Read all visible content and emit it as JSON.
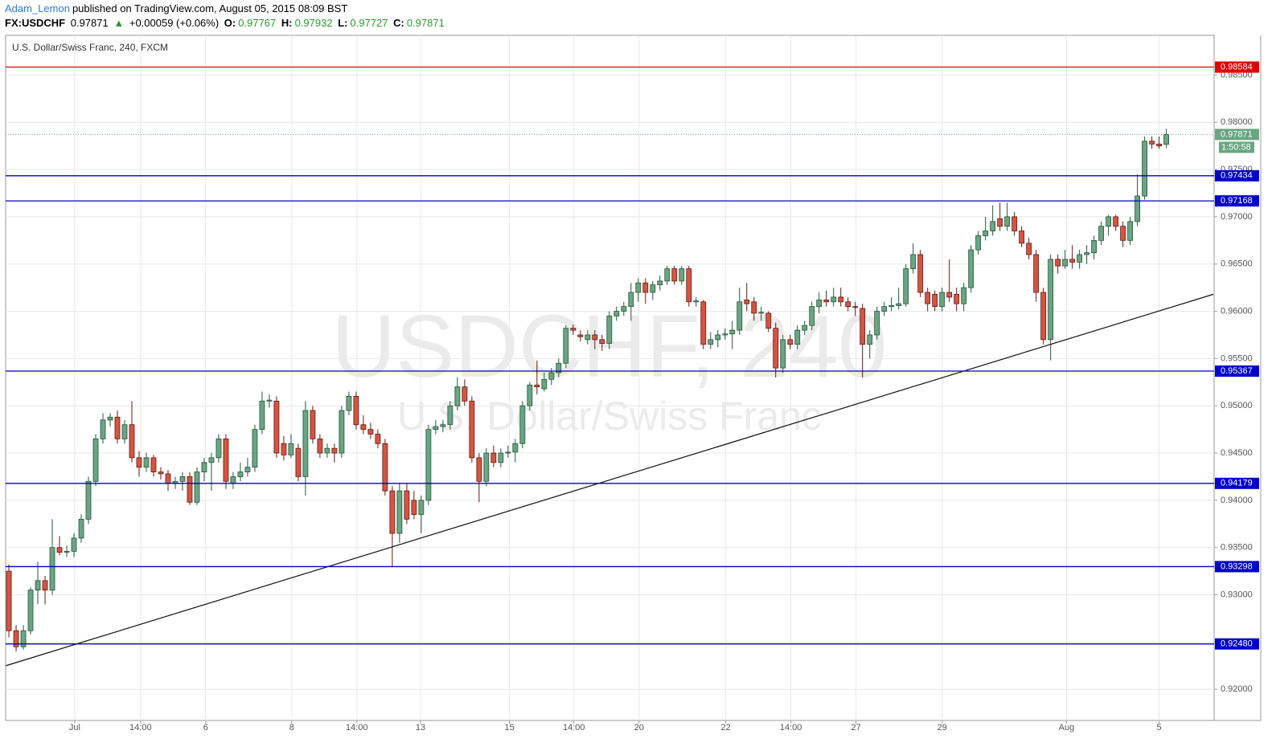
{
  "header": {
    "author": "Adam_Lemon",
    "published": "published on TradingView.com, August 05, 2015 08:09 BST",
    "symbol": "FX:USDCHF",
    "last": "0.97871",
    "arrow": "▲",
    "change": "+0.00059 (+0.06%)",
    "ohlc": [
      {
        "label": "O:",
        "value": "0.97767"
      },
      {
        "label": "H:",
        "value": "0.97932"
      },
      {
        "label": "L:",
        "value": "0.97727"
      },
      {
        "label": "C:",
        "value": "0.97871"
      }
    ]
  },
  "chart_data": {
    "type": "candlestick",
    "title": "U.S. Dollar/Swiss Franc, 240, FXCM",
    "watermark": [
      "USDCHF, 240",
      "U.S. Dollar/Swiss Franc"
    ],
    "up_color": "#6ba583",
    "down_color": "#d75442",
    "grid": true,
    "xlim": [
      -0.45,
      166.6
    ],
    "ylim": [
      0.9167,
      0.9892
    ],
    "xticks": [
      {
        "value": 9.1,
        "label": "Jul"
      },
      {
        "value": 18.2,
        "label": "14:00"
      },
      {
        "value": 27.2,
        "label": "6"
      },
      {
        "value": 39.1,
        "label": "8"
      },
      {
        "value": 48.1,
        "label": "14:00"
      },
      {
        "value": 56.9,
        "label": "13"
      },
      {
        "value": 69.2,
        "label": "15"
      },
      {
        "value": 78.1,
        "label": "14:00"
      },
      {
        "value": 87.1,
        "label": "20"
      },
      {
        "value": 99.1,
        "label": "22"
      },
      {
        "value": 108.1,
        "label": "14:00"
      },
      {
        "value": 117.1,
        "label": "27"
      },
      {
        "value": 129.0,
        "label": "29"
      },
      {
        "value": 146.2,
        "label": "Aug"
      },
      {
        "value": 159.0,
        "label": "5"
      }
    ],
    "yticks": [
      {
        "value": 0.92,
        "label": "0.92000"
      },
      {
        "value": 0.925,
        "label": "0.92500"
      },
      {
        "value": 0.93,
        "label": "0.93000"
      },
      {
        "value": 0.935,
        "label": "0.93500"
      },
      {
        "value": 0.94,
        "label": "0.94000"
      },
      {
        "value": 0.945,
        "label": "0.94500"
      },
      {
        "value": 0.95,
        "label": "0.95000"
      },
      {
        "value": 0.955,
        "label": "0.95500"
      },
      {
        "value": 0.96,
        "label": "0.96000"
      },
      {
        "value": 0.965,
        "label": "0.96500"
      },
      {
        "value": 0.97,
        "label": "0.97000"
      },
      {
        "value": 0.975,
        "label": "0.97500"
      },
      {
        "value": 0.98,
        "label": "0.98000"
      },
      {
        "value": 0.985,
        "label": "0.98500"
      }
    ],
    "levels": [
      {
        "price": 0.98584,
        "color": "#e00000"
      },
      {
        "price": 0.97434,
        "color": "#0000cc"
      },
      {
        "price": 0.97168,
        "color": "#0000cc"
      },
      {
        "price": 0.95367,
        "color": "#0000cc"
      },
      {
        "price": 0.94179,
        "color": "#0000cc"
      },
      {
        "price": 0.93298,
        "color": "#0000cc"
      },
      {
        "price": {
          "value": 0.9248,
          "label": "0.92480"
        },
        "color": "#0000cc"
      }
    ],
    "last_price": 0.97871,
    "countdown": "1:50:58",
    "trendline": {
      "x": [
        -0.4,
        166.5
      ],
      "y": [
        0.9225,
        0.9618
      ]
    },
    "candles": [
      [
        0.9325,
        0.9332,
        0.9255,
        0.9262
      ],
      [
        0.9262,
        0.9268,
        0.924,
        0.9245
      ],
      [
        0.9245,
        0.9268,
        0.9242,
        0.9262
      ],
      [
        0.9262,
        0.9308,
        0.9258,
        0.9305
      ],
      [
        0.9305,
        0.9335,
        0.929,
        0.9315
      ],
      [
        0.9315,
        0.932,
        0.929,
        0.9305
      ],
      [
        0.9305,
        0.938,
        0.93,
        0.935
      ],
      [
        0.935,
        0.9362,
        0.9342,
        0.9345
      ],
      [
        0.9345,
        0.9352,
        0.934,
        0.9346
      ],
      [
        0.9346,
        0.9365,
        0.934,
        0.936
      ],
      [
        0.936,
        0.9385,
        0.9355,
        0.938
      ],
      [
        0.938,
        0.9425,
        0.9375,
        0.942
      ],
      [
        0.942,
        0.947,
        0.9415,
        0.9465
      ],
      [
        0.9465,
        0.9492,
        0.946,
        0.9485
      ],
      [
        0.9485,
        0.9492,
        0.9478,
        0.9488
      ],
      [
        0.9488,
        0.9495,
        0.946,
        0.9465
      ],
      [
        0.9465,
        0.9485,
        0.946,
        0.948
      ],
      [
        0.948,
        0.9505,
        0.944,
        0.9445
      ],
      [
        0.9445,
        0.9452,
        0.9425,
        0.9435
      ],
      [
        0.9435,
        0.945,
        0.943,
        0.9445
      ],
      [
        0.9445,
        0.9448,
        0.9425,
        0.943
      ],
      [
        0.943,
        0.9435,
        0.9422,
        0.9428
      ],
      [
        0.9428,
        0.9432,
        0.941,
        0.9418
      ],
      [
        0.9418,
        0.9425,
        0.9412,
        0.942
      ],
      [
        0.942,
        0.943,
        0.941,
        0.9425
      ],
      [
        0.9425,
        0.943,
        0.9395,
        0.9398
      ],
      [
        0.9398,
        0.9435,
        0.9395,
        0.943
      ],
      [
        0.943,
        0.9445,
        0.942,
        0.944
      ],
      [
        0.944,
        0.945,
        0.941,
        0.9445
      ],
      [
        0.9445,
        0.947,
        0.944,
        0.9465
      ],
      [
        0.9465,
        0.947,
        0.9412,
        0.942
      ],
      [
        0.9418,
        0.943,
        0.9412,
        0.9425
      ],
      [
        0.9425,
        0.944,
        0.942,
        0.943
      ],
      [
        0.943,
        0.9445,
        0.9425,
        0.9435
      ],
      [
        0.9435,
        0.948,
        0.943,
        0.9475
      ],
      [
        0.9475,
        0.9515,
        0.947,
        0.9505
      ],
      [
        0.9505,
        0.9512,
        0.9498,
        0.9506
      ],
      [
        0.9505,
        0.951,
        0.9445,
        0.945
      ],
      [
        0.946,
        0.9468,
        0.9442,
        0.9448
      ],
      [
        0.9448,
        0.947,
        0.9445,
        0.946
      ],
      [
        0.9455,
        0.946,
        0.942,
        0.9425
      ],
      [
        0.9425,
        0.9505,
        0.9405,
        0.9495
      ],
      [
        0.9495,
        0.95,
        0.946,
        0.9465
      ],
      [
        0.9465,
        0.947,
        0.9445,
        0.945
      ],
      [
        0.945,
        0.946,
        0.9445,
        0.9455
      ],
      [
        0.9455,
        0.946,
        0.944,
        0.945
      ],
      [
        0.945,
        0.95,
        0.9445,
        0.9495
      ],
      [
        0.9495,
        0.9515,
        0.949,
        0.951
      ],
      [
        0.951,
        0.9515,
        0.9475,
        0.948
      ],
      [
        0.948,
        0.949,
        0.947,
        0.9475
      ],
      [
        0.9475,
        0.9482,
        0.9465,
        0.947
      ],
      [
        0.947,
        0.9475,
        0.9455,
        0.946
      ],
      [
        0.946,
        0.9465,
        0.9405,
        0.941
      ],
      [
        0.941,
        0.9415,
        0.933,
        0.9365
      ],
      [
        0.9365,
        0.9418,
        0.9355,
        0.941
      ],
      [
        0.941,
        0.9418,
        0.9375,
        0.938
      ],
      [
        0.94,
        0.941,
        0.938,
        0.9385
      ],
      [
        0.9385,
        0.9405,
        0.9365,
        0.94
      ],
      [
        0.94,
        0.948,
        0.9395,
        0.9475
      ],
      [
        0.9475,
        0.9485,
        0.947,
        0.9478
      ],
      [
        0.9478,
        0.9485,
        0.9472,
        0.948
      ],
      [
        0.948,
        0.9505,
        0.9475,
        0.95
      ],
      [
        0.95,
        0.953,
        0.9495,
        0.952
      ],
      [
        0.952,
        0.9528,
        0.95,
        0.9505
      ],
      [
        0.9505,
        0.951,
        0.944,
        0.9445
      ],
      [
        0.9445,
        0.945,
        0.9398,
        0.942
      ],
      [
        0.942,
        0.9455,
        0.9415,
        0.945
      ],
      [
        0.945,
        0.9458,
        0.9435,
        0.944
      ],
      [
        0.944,
        0.9455,
        0.9435,
        0.945
      ],
      [
        0.945,
        0.9458,
        0.9445,
        0.9451
      ],
      [
        0.9451,
        0.9465,
        0.944,
        0.946
      ],
      [
        0.946,
        0.9505,
        0.9455,
        0.95
      ],
      [
        0.95,
        0.9525,
        0.9495,
        0.9522
      ],
      [
        0.9522,
        0.9548,
        0.9512,
        0.952
      ],
      [
        0.9518,
        0.9535,
        0.9515,
        0.9528
      ],
      [
        0.9528,
        0.954,
        0.9522,
        0.9535
      ],
      [
        0.9535,
        0.955,
        0.953,
        0.9545
      ],
      [
        0.9545,
        0.9585,
        0.954,
        0.9582
      ],
      [
        0.9582,
        0.9586,
        0.9575,
        0.958
      ],
      [
        0.9575,
        0.958,
        0.9568,
        0.9573
      ],
      [
        0.957,
        0.958,
        0.9565,
        0.9575
      ],
      [
        0.9575,
        0.958,
        0.956,
        0.957
      ],
      [
        0.957,
        0.9575,
        0.9558,
        0.9566
      ],
      [
        0.9566,
        0.96,
        0.956,
        0.9595
      ],
      [
        0.9595,
        0.9605,
        0.959,
        0.96
      ],
      [
        0.96,
        0.961,
        0.9595,
        0.9605
      ],
      [
        0.9605,
        0.963,
        0.959,
        0.962
      ],
      [
        0.962,
        0.9635,
        0.961,
        0.963
      ],
      [
        0.963,
        0.9635,
        0.9608,
        0.962
      ],
      [
        0.962,
        0.9632,
        0.9612,
        0.9628
      ],
      [
        0.9628,
        0.9638,
        0.9622,
        0.9632
      ],
      [
        0.9632,
        0.9648,
        0.9628,
        0.9645
      ],
      [
        0.9645,
        0.9648,
        0.9628,
        0.9632
      ],
      [
        0.9632,
        0.9648,
        0.9628,
        0.9645
      ],
      [
        0.9645,
        0.9648,
        0.9605,
        0.961
      ],
      [
        0.961,
        0.9615,
        0.9605,
        0.9611
      ],
      [
        0.961,
        0.9612,
        0.956,
        0.9565
      ],
      [
        0.9565,
        0.9578,
        0.956,
        0.957
      ],
      [
        0.957,
        0.958,
        0.9562,
        0.9575
      ],
      [
        0.9575,
        0.9582,
        0.957,
        0.9576
      ],
      [
        0.9576,
        0.959,
        0.956,
        0.958
      ],
      [
        0.958,
        0.9625,
        0.9575,
        0.961
      ],
      [
        0.9612,
        0.963,
        0.96,
        0.9608
      ],
      [
        0.961,
        0.9615,
        0.959,
        0.9598
      ],
      [
        0.9598,
        0.9605,
        0.959,
        0.9599
      ],
      [
        0.9598,
        0.96,
        0.9578,
        0.9582
      ],
      [
        0.9582,
        0.9588,
        0.953,
        0.954
      ],
      [
        0.954,
        0.9575,
        0.9535,
        0.957
      ],
      [
        0.957,
        0.9575,
        0.956,
        0.9565
      ],
      [
        0.9565,
        0.9585,
        0.956,
        0.958
      ],
      [
        0.958,
        0.959,
        0.9575,
        0.9585
      ],
      [
        0.9585,
        0.961,
        0.958,
        0.9605
      ],
      [
        0.9605,
        0.962,
        0.9598,
        0.9612
      ],
      [
        0.9612,
        0.9622,
        0.9605,
        0.961
      ],
      [
        0.961,
        0.9625,
        0.9605,
        0.9615
      ],
      [
        0.9615,
        0.9625,
        0.9605,
        0.961
      ],
      [
        0.961,
        0.9615,
        0.96,
        0.9605
      ],
      [
        0.9605,
        0.961,
        0.9595,
        0.9604
      ],
      [
        0.9603,
        0.9608,
        0.953,
        0.9565
      ],
      [
        0.9565,
        0.958,
        0.955,
        0.9575
      ],
      [
        0.9575,
        0.9605,
        0.957,
        0.96
      ],
      [
        0.96,
        0.961,
        0.9595,
        0.9605
      ],
      [
        0.9605,
        0.9615,
        0.96,
        0.9606
      ],
      [
        0.9606,
        0.9625,
        0.9602,
        0.9608
      ],
      [
        0.9608,
        0.965,
        0.9605,
        0.9645
      ],
      [
        0.9645,
        0.9672,
        0.964,
        0.966
      ],
      [
        0.966,
        0.9665,
        0.9615,
        0.962
      ],
      [
        0.962,
        0.9625,
        0.96,
        0.9608
      ],
      [
        0.9618,
        0.9622,
        0.96,
        0.9605
      ],
      [
        0.9605,
        0.9625,
        0.96,
        0.962
      ],
      [
        0.962,
        0.9655,
        0.961,
        0.9615
      ],
      [
        0.9618,
        0.9625,
        0.96,
        0.9608
      ],
      [
        0.9608,
        0.963,
        0.96,
        0.9625
      ],
      [
        0.9625,
        0.967,
        0.962,
        0.9665
      ],
      [
        0.9665,
        0.9685,
        0.966,
        0.968
      ],
      [
        0.968,
        0.97,
        0.9675,
        0.9685
      ],
      [
        0.9685,
        0.9712,
        0.968,
        0.9695
      ],
      [
        0.9698,
        0.9715,
        0.9685,
        0.969
      ],
      [
        0.969,
        0.9715,
        0.9685,
        0.97
      ],
      [
        0.97,
        0.9705,
        0.968,
        0.9685
      ],
      [
        0.9685,
        0.969,
        0.9668,
        0.9672
      ],
      [
        0.9672,
        0.9678,
        0.9655,
        0.966
      ],
      [
        0.966,
        0.9665,
        0.961,
        0.962
      ],
      [
        0.962,
        0.9625,
        0.9565,
        0.957
      ],
      [
        0.957,
        0.966,
        0.9548,
        0.9655
      ],
      [
        0.9655,
        0.966,
        0.964,
        0.9648
      ],
      [
        0.9648,
        0.9665,
        0.9645,
        0.9655
      ],
      [
        0.9655,
        0.967,
        0.9645,
        0.9652
      ],
      [
        0.9652,
        0.9665,
        0.9645,
        0.966
      ],
      [
        0.966,
        0.967,
        0.965,
        0.9662
      ],
      [
        0.9662,
        0.968,
        0.9655,
        0.9675
      ],
      [
        0.9675,
        0.9695,
        0.967,
        0.969
      ],
      [
        0.969,
        0.9702,
        0.968,
        0.97
      ],
      [
        0.97,
        0.9702,
        0.9685,
        0.969
      ],
      [
        0.969,
        0.9695,
        0.9668,
        0.9675
      ],
      [
        0.9675,
        0.97,
        0.967,
        0.9695
      ],
      [
        0.9695,
        0.9745,
        0.969,
        0.9722
      ],
      [
        0.9722,
        0.9785,
        0.9718,
        0.978
      ],
      [
        0.978,
        0.9785,
        0.9772,
        0.9777
      ],
      [
        0.9777,
        0.9785,
        0.9772,
        0.9775
      ],
      [
        0.97767,
        0.97932,
        0.97727,
        0.97871
      ]
    ]
  }
}
